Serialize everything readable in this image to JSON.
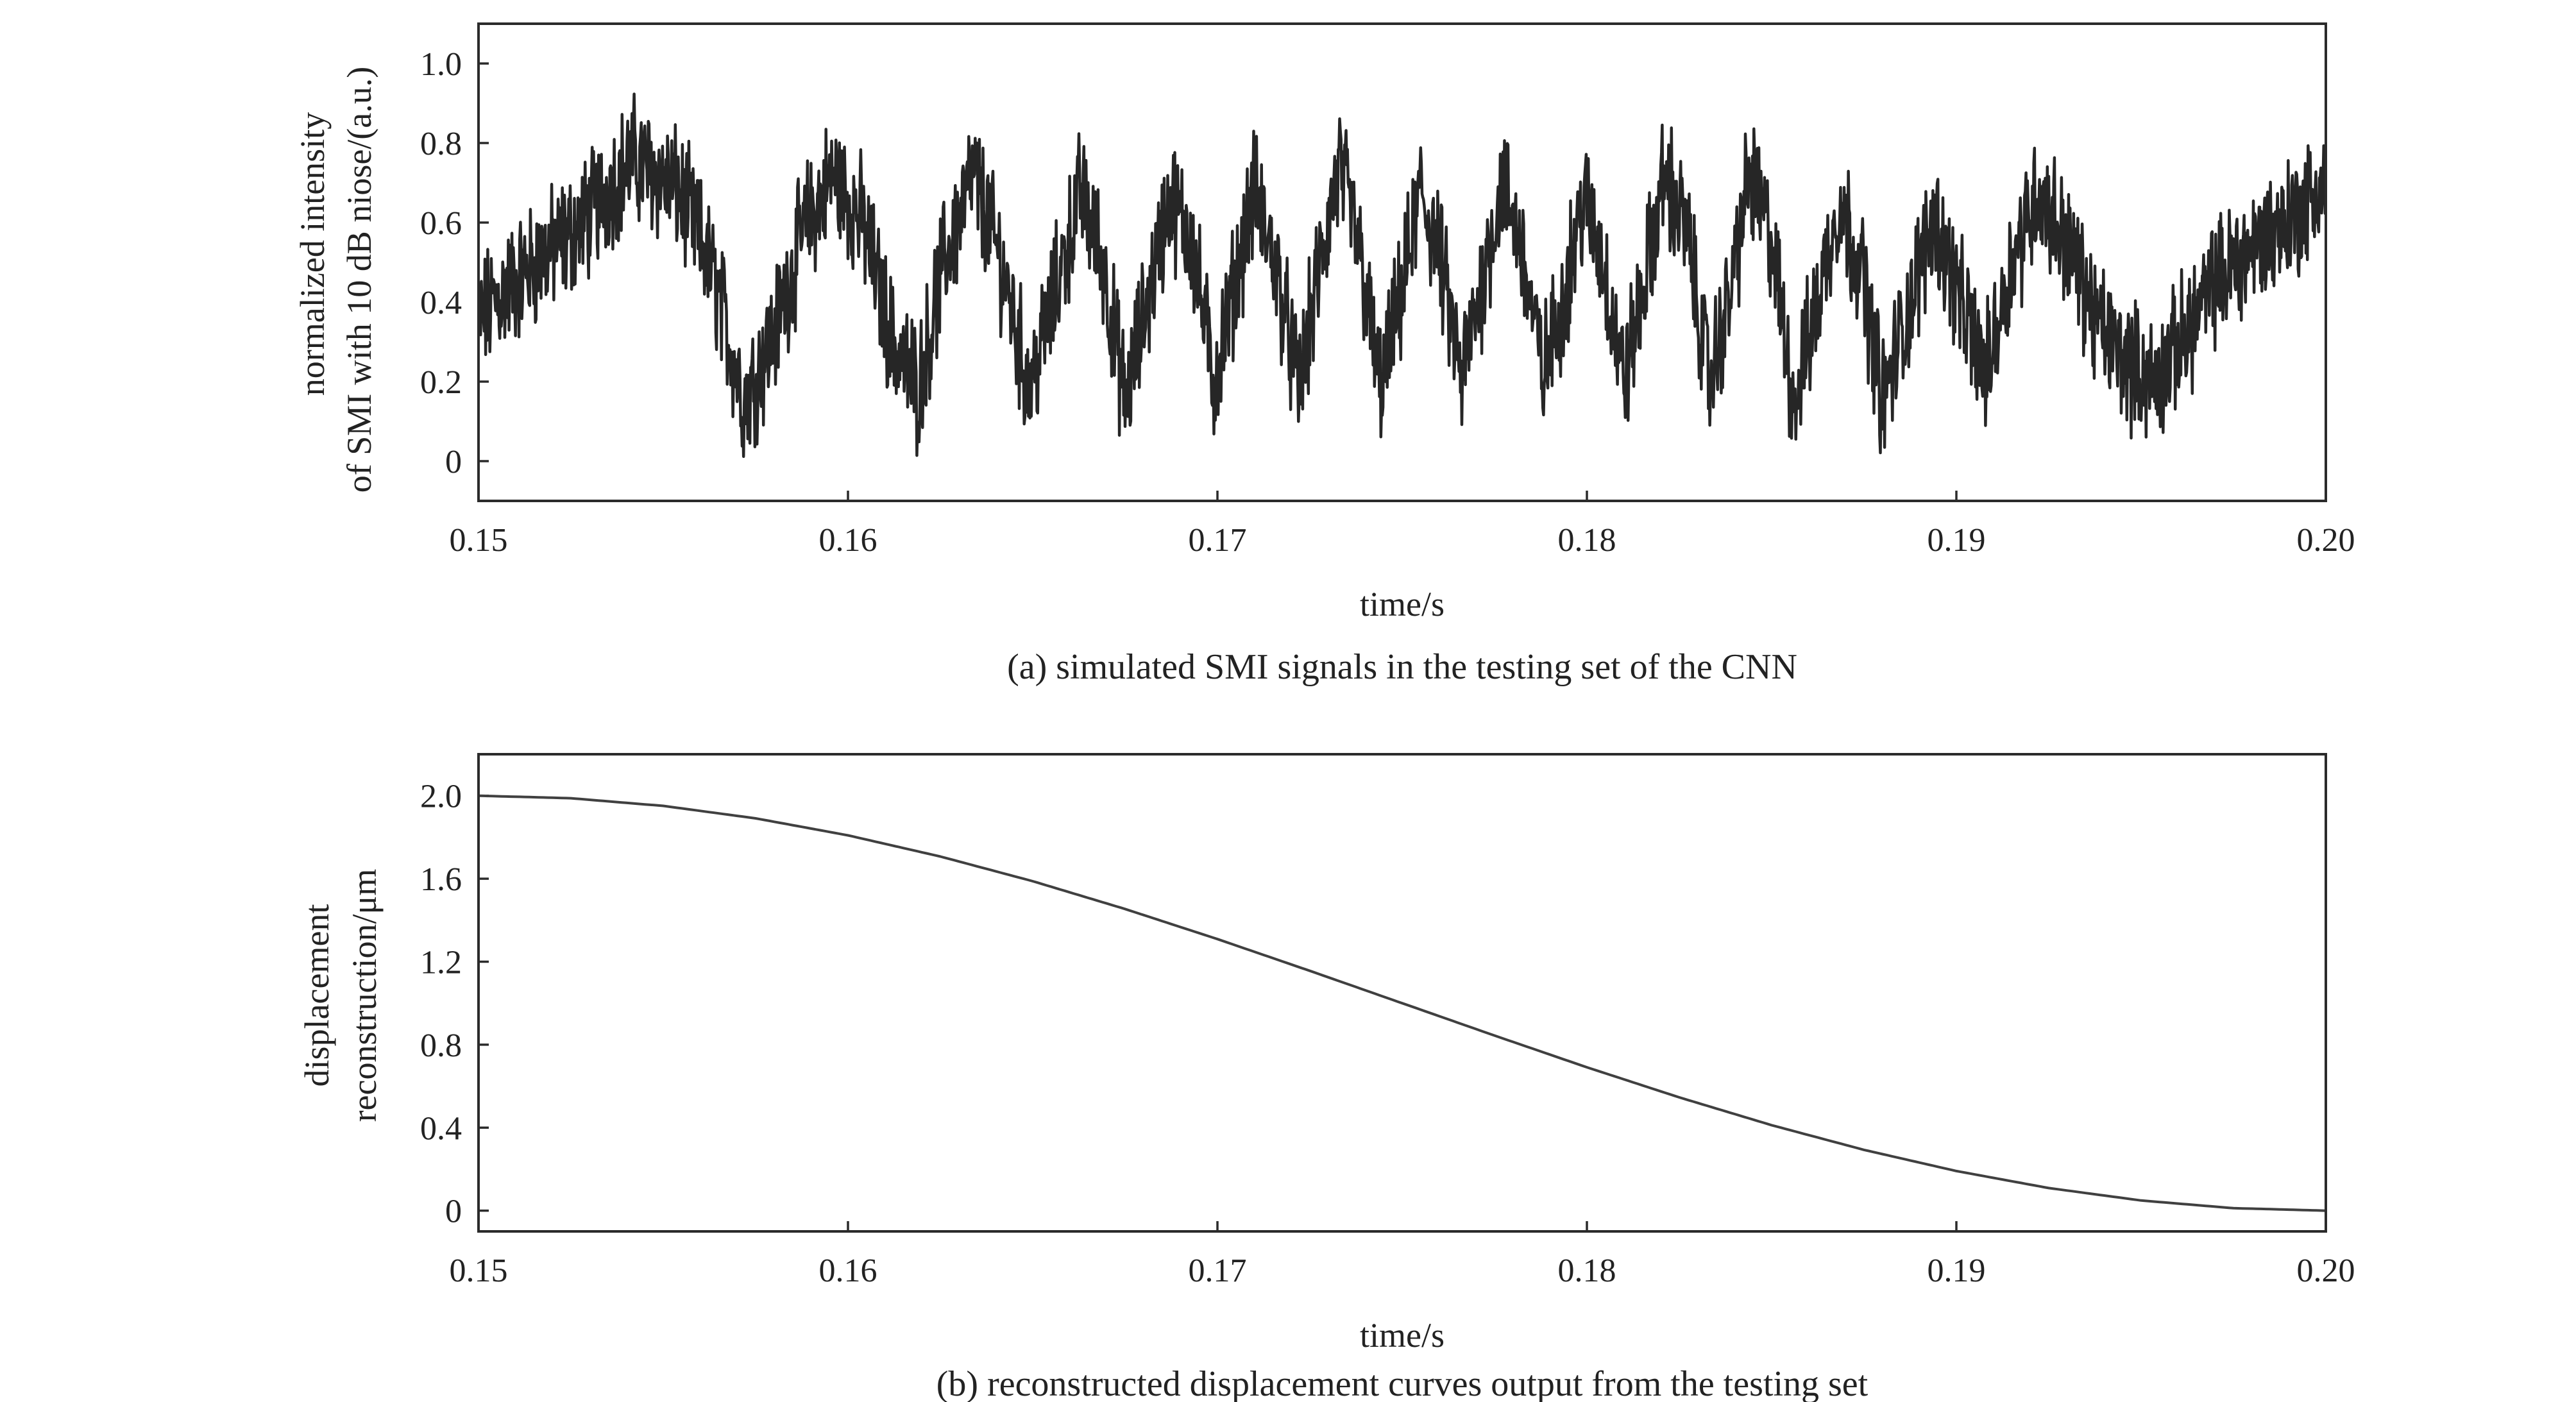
{
  "chart_data": [
    {
      "type": "line",
      "caption": "(a) simulated SMI signals in the testing set of the CNN",
      "xlabel": "time/s",
      "ylabel": [
        "normalized intensity",
        "of SMI with 10 dB niose/(a.u.)"
      ],
      "xlim": [
        0.15,
        0.2
      ],
      "ylim": [
        -0.1,
        1.1
      ],
      "xticks": [
        0.15,
        0.16,
        0.17,
        0.18,
        0.19,
        0.2
      ],
      "xtick_labels": [
        "0.15",
        "0.16",
        "0.17",
        "0.18",
        "0.19",
        "0.20"
      ],
      "yticks": [
        0,
        0.2,
        0.4,
        0.6,
        0.8,
        1.0
      ],
      "ytick_labels": [
        "0",
        "0.2",
        "0.4",
        "0.6",
        "0.8",
        "1.0"
      ],
      "grid": false,
      "line_color": "#262626",
      "series": [
        {
          "x": [
            0.15,
            0.1506,
            0.1512,
            0.1518,
            0.1524,
            0.153,
            0.1536,
            0.1542,
            0.1548,
            0.1554,
            0.1559,
            0.1564,
            0.1568,
            0.1572,
            0.158,
            0.1588,
            0.1596,
            0.1604,
            0.1612,
            0.1619,
            0.1626,
            0.1634,
            0.1642,
            0.1649,
            0.1656,
            0.1663,
            0.1669,
            0.1675,
            0.1681,
            0.1687,
            0.1693,
            0.1699,
            0.1705,
            0.171,
            0.1716,
            0.1722,
            0.1727,
            0.1733,
            0.1738,
            0.1744,
            0.1749,
            0.1755,
            0.176,
            0.1766,
            0.1771,
            0.1777,
            0.1782,
            0.1788,
            0.1793,
            0.1799,
            0.1804,
            0.181,
            0.1815,
            0.1821,
            0.1827,
            0.1833,
            0.1838,
            0.1844,
            0.185,
            0.1856,
            0.1862,
            0.1868,
            0.1874,
            0.188,
            0.1887,
            0.1894,
            0.1901,
            0.1908,
            0.1915,
            0.1922,
            0.193,
            0.1938,
            0.1946,
            0.1954,
            0.1962,
            0.197,
            0.1978,
            0.1986,
            0.1994,
            0.2
          ],
          "y": [
            0.35,
            0.42,
            0.47,
            0.52,
            0.56,
            0.62,
            0.7,
            0.76,
            0.72,
            0.68,
            0.58,
            0.45,
            0.3,
            0.15,
            0.32,
            0.58,
            0.72,
            0.6,
            0.3,
            0.18,
            0.5,
            0.72,
            0.48,
            0.18,
            0.42,
            0.68,
            0.5,
            0.15,
            0.4,
            0.66,
            0.56,
            0.2,
            0.46,
            0.68,
            0.48,
            0.18,
            0.45,
            0.74,
            0.55,
            0.18,
            0.38,
            0.68,
            0.52,
            0.2,
            0.42,
            0.7,
            0.55,
            0.22,
            0.38,
            0.66,
            0.52,
            0.2,
            0.42,
            0.72,
            0.58,
            0.2,
            0.38,
            0.72,
            0.55,
            0.15,
            0.38,
            0.65,
            0.5,
            0.15,
            0.38,
            0.62,
            0.4,
            0.22,
            0.5,
            0.68,
            0.55,
            0.35,
            0.25,
            0.2,
            0.32,
            0.45,
            0.52,
            0.58,
            0.64,
            0.7
          ]
        }
      ]
    },
    {
      "type": "line",
      "caption": "(b) reconstructed displacement curves output from the testing set",
      "xlabel": "time/s",
      "ylabel": [
        "displacement",
        "reconstruction/μm"
      ],
      "xlim": [
        0.15,
        0.2
      ],
      "ylim": [
        -0.1,
        2.2
      ],
      "xticks": [
        0.15,
        0.16,
        0.17,
        0.18,
        0.19,
        0.2
      ],
      "xtick_labels": [
        "0.15",
        "0.16",
        "0.17",
        "0.18",
        "0.19",
        "0.20"
      ],
      "yticks": [
        0,
        0.4,
        0.8,
        1.2,
        1.6,
        2.0
      ],
      "ytick_labels": [
        "0",
        "0.4",
        "0.8",
        "1.2",
        "1.6",
        "2.0"
      ],
      "grid": false,
      "line_color": "#404040",
      "series": [
        {
          "x": [
            0.15,
            0.1525,
            0.155,
            0.1575,
            0.16,
            0.1625,
            0.165,
            0.1675,
            0.17,
            0.1725,
            0.175,
            0.1775,
            0.18,
            0.1825,
            0.185,
            0.1875,
            0.19,
            0.1925,
            0.195,
            0.1975,
            0.2
          ],
          "y": [
            2.0,
            1.988,
            1.951,
            1.891,
            1.809,
            1.707,
            1.588,
            1.454,
            1.309,
            1.156,
            1.0,
            0.844,
            0.691,
            0.546,
            0.412,
            0.293,
            0.191,
            0.109,
            0.049,
            0.012,
            0.0
          ]
        }
      ]
    }
  ]
}
